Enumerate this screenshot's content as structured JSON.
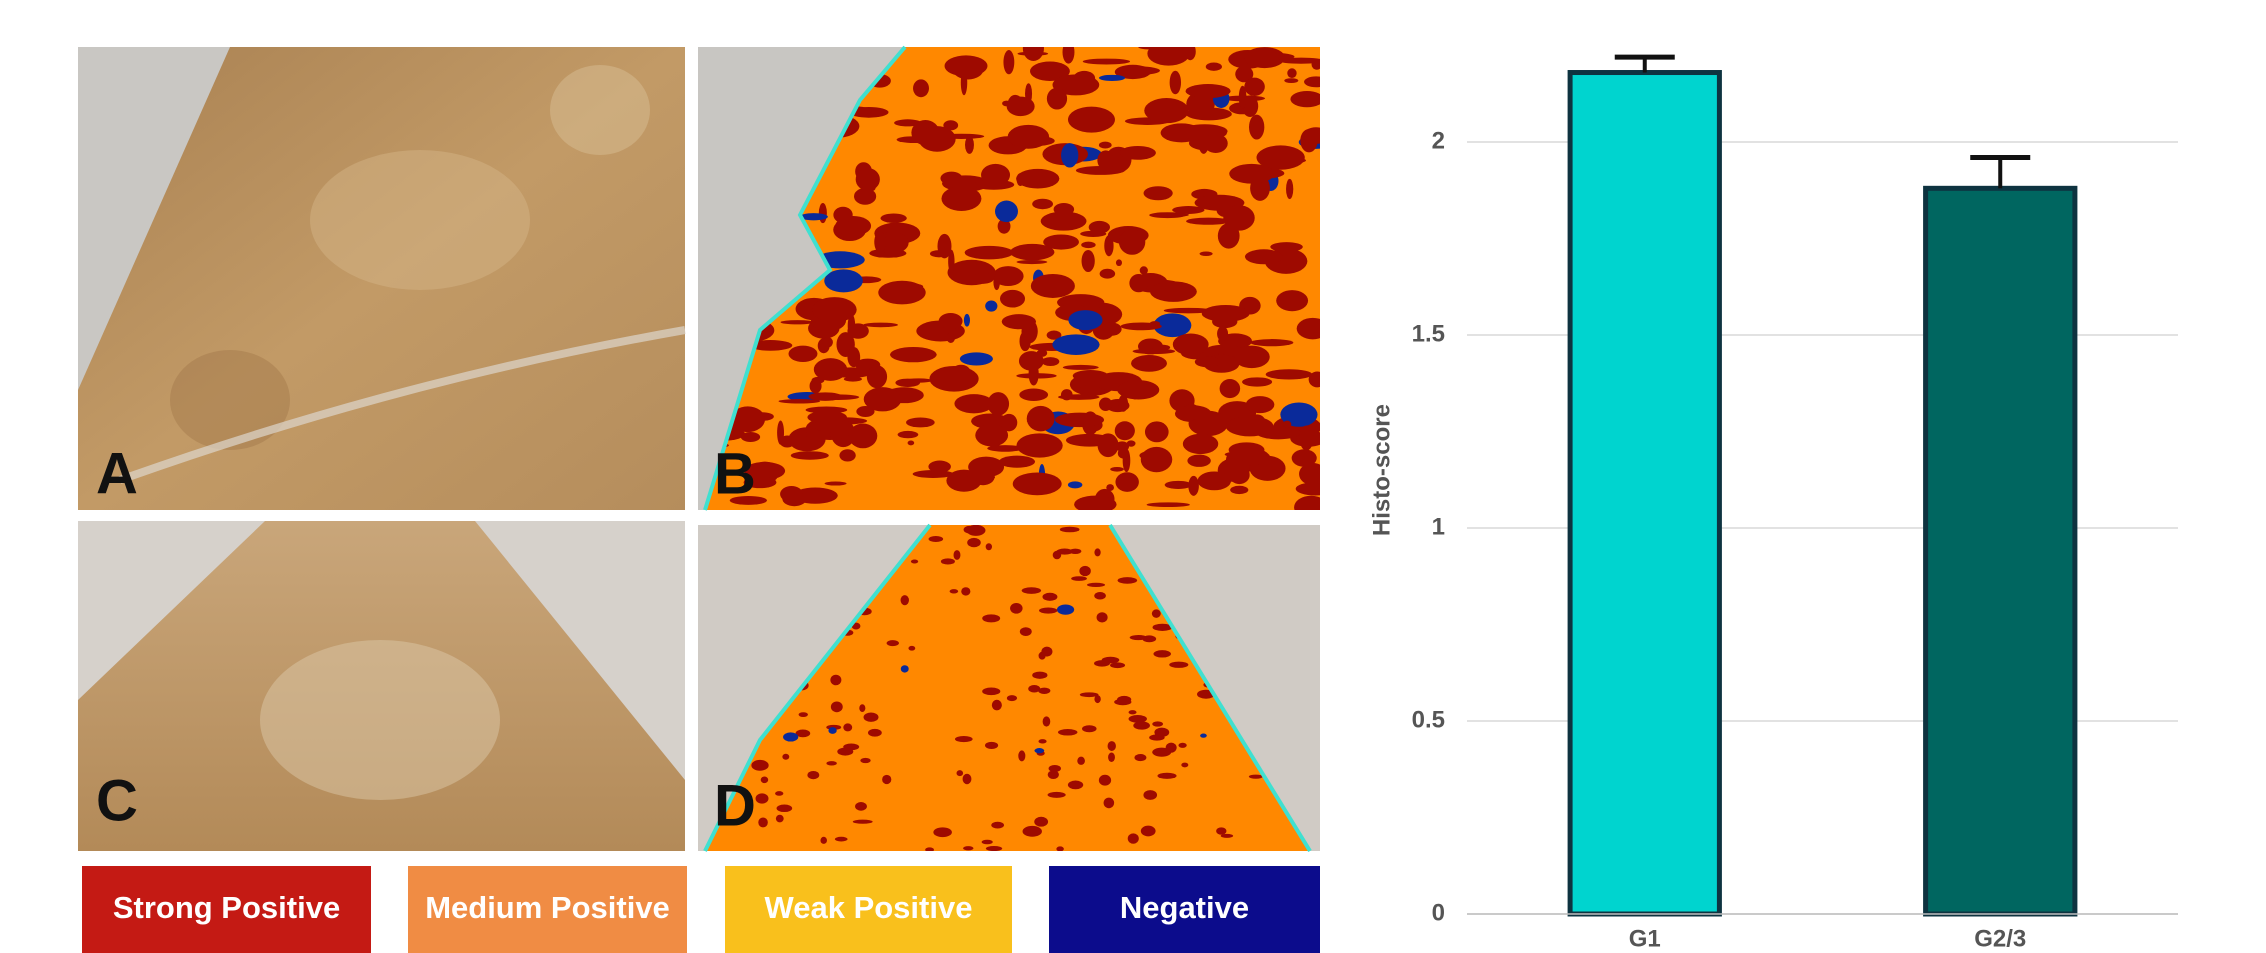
{
  "figure": {
    "panel_labels": [
      "A",
      "B",
      "C",
      "D"
    ],
    "stain_legend": [
      {
        "label": "Strong Positive",
        "color": "#c41a14"
      },
      {
        "label": "Medium Positive",
        "color": "#f08c44"
      },
      {
        "label": "Weak Positive",
        "color": "#f9c01c"
      },
      {
        "label": "Negative",
        "color": "#0c0c8c"
      }
    ]
  },
  "chart_data": {
    "type": "bar",
    "y_label": "Histo-score",
    "categories": [
      "G1",
      "G2/3"
    ],
    "values": [
      2.18,
      1.88
    ],
    "errors": [
      0.04,
      0.08
    ],
    "colors": [
      "#00d4cf",
      "#006660"
    ],
    "edge_color": "#0e3340",
    "ylim": [
      0,
      2.3
    ],
    "yticks": [
      0,
      0.5,
      1,
      1.5,
      2
    ],
    "grid": true
  }
}
